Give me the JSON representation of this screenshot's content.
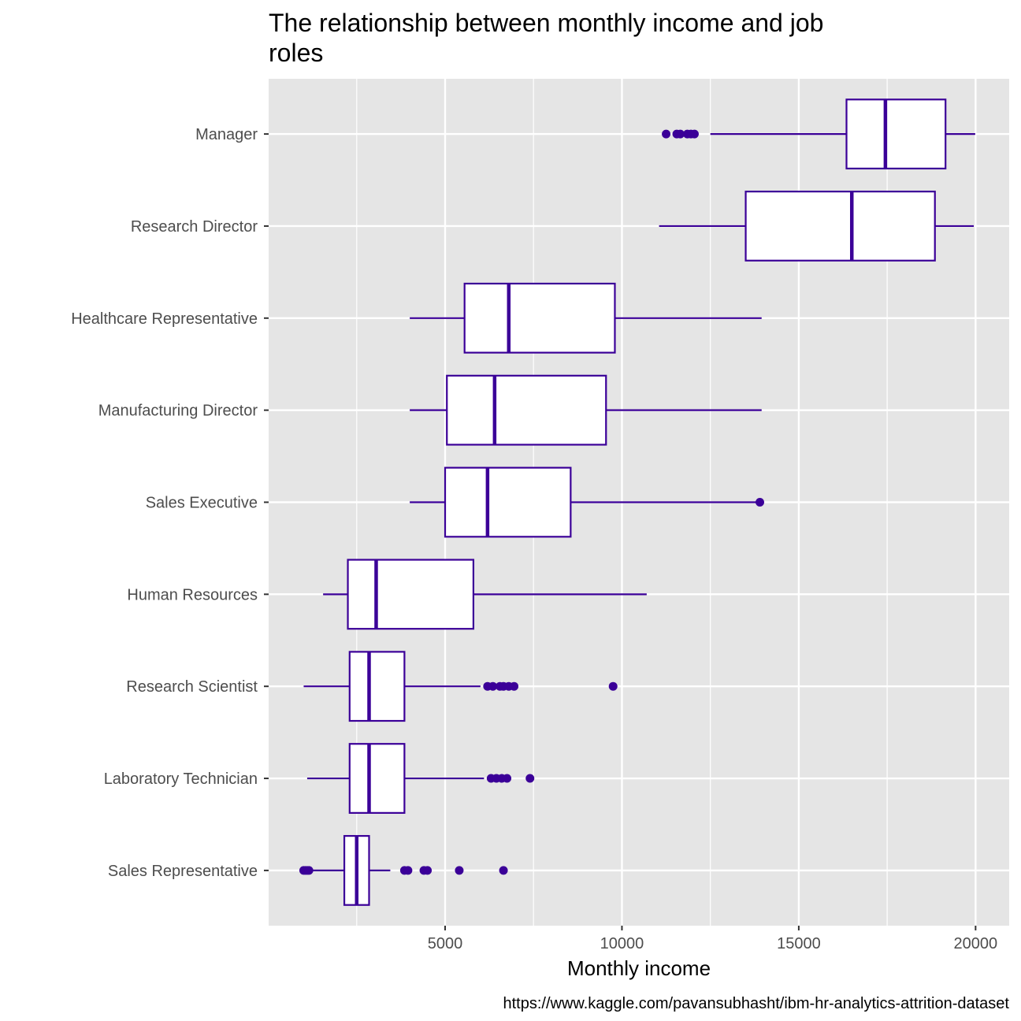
{
  "chart_data": {
    "type": "boxplot",
    "orientation": "horizontal",
    "title_lines": [
      "The relationship between monthly income and job",
      "roles"
    ],
    "xlabel": "Monthly income",
    "ylabel": "",
    "caption": "https://www.kaggle.com/pavansubhasht/ibm-hr-analytics-attrition-dataset",
    "xlim": [
      10,
      20950
    ],
    "x_ticks": [
      5000,
      10000,
      15000,
      20000
    ],
    "x_tick_labels": [
      "5000",
      "10000",
      "15000",
      "20000"
    ],
    "grid": true,
    "legend": "none",
    "colors": {
      "box_stroke": "#3B0098",
      "box_fill": "#ffffff",
      "panel_background": "#E5E5E5",
      "grid_line": "#ffffff",
      "tick_text": "#4d4d4d"
    },
    "categories": [
      "Manager",
      "Research Director",
      "Healthcare Representative",
      "Manufacturing Director",
      "Sales Executive",
      "Human Resources",
      "Research Scientist",
      "Laboratory Technician",
      "Sales Representative"
    ],
    "boxes": [
      {
        "category": "Manager",
        "whisker_low": 12500,
        "q1": 16350,
        "median": 17450,
        "q3": 19150,
        "whisker_high": 19990,
        "outliers": [
          11250,
          11550,
          11650,
          11850,
          11950,
          12050
        ]
      },
      {
        "category": "Research Director",
        "whisker_low": 11050,
        "q1": 13500,
        "median": 16500,
        "q3": 18850,
        "whisker_high": 19950,
        "outliers": []
      },
      {
        "category": "Healthcare Representative",
        "whisker_low": 4000,
        "q1": 5550,
        "median": 6800,
        "q3": 9800,
        "whisker_high": 13950,
        "outliers": []
      },
      {
        "category": "Manufacturing Director",
        "whisker_low": 4000,
        "q1": 5050,
        "median": 6400,
        "q3": 9550,
        "whisker_high": 13950,
        "outliers": []
      },
      {
        "category": "Sales Executive",
        "whisker_low": 4000,
        "q1": 5000,
        "median": 6200,
        "q3": 8550,
        "whisker_high": 13900,
        "outliers": [
          13900
        ]
      },
      {
        "category": "Human Resources",
        "whisker_low": 1550,
        "q1": 2250,
        "median": 3050,
        "q3": 5800,
        "whisker_high": 10700,
        "outliers": []
      },
      {
        "category": "Research Scientist",
        "whisker_low": 1000,
        "q1": 2300,
        "median": 2850,
        "q3": 3850,
        "whisker_high": 6000,
        "outliers": [
          6200,
          6350,
          6550,
          6650,
          6800,
          6950,
          9750
        ]
      },
      {
        "category": "Laboratory Technician",
        "whisker_low": 1100,
        "q1": 2300,
        "median": 2850,
        "q3": 3850,
        "whisker_high": 6100,
        "outliers": [
          6300,
          6450,
          6600,
          6750,
          7400
        ]
      },
      {
        "category": "Sales Representative",
        "whisker_low": 1050,
        "q1": 2150,
        "median": 2500,
        "q3": 2850,
        "whisker_high": 3450,
        "outliers": [
          1000,
          1050,
          1100,
          1150,
          3850,
          3950,
          4400,
          4500,
          5400,
          6650
        ]
      }
    ]
  }
}
